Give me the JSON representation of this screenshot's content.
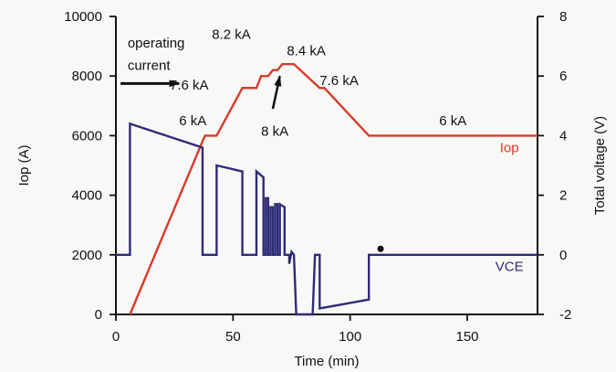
{
  "chart_data": {
    "type": "line",
    "title": "",
    "xlabel": "Time (min)",
    "ylabel": "Iop (A)",
    "y2label": "Total voltage (V)",
    "xlim": [
      0,
      180
    ],
    "ylim": [
      0,
      10000
    ],
    "y2lim": [
      -2,
      8
    ],
    "xticks": [
      0,
      50,
      100,
      150
    ],
    "yticks": [
      0,
      2000,
      4000,
      6000,
      8000,
      10000
    ],
    "y2ticks": [
      -2,
      0,
      2,
      4,
      6,
      8
    ],
    "xtick_labels": [
      "0",
      "50",
      "100",
      "150"
    ],
    "ytick_labels": [
      "0",
      "2000",
      "4000",
      "6000",
      "8000",
      "10000"
    ],
    "y2tick_labels": [
      "-2",
      "0",
      "2",
      "4",
      "6",
      "8"
    ],
    "grid": false,
    "colors": {
      "iop": "#d93a2b",
      "vce": "#2f2b78",
      "axis": "#111111"
    },
    "series": [
      {
        "name": "Iop",
        "axis": "left",
        "points": [
          [
            6,
            0
          ],
          [
            38,
            6000
          ],
          [
            43,
            6000
          ],
          [
            54,
            7600
          ],
          [
            60,
            7600
          ],
          [
            62,
            8000
          ],
          [
            65,
            8000
          ],
          [
            67,
            8200
          ],
          [
            69,
            8200
          ],
          [
            71,
            8400
          ],
          [
            76,
            8400
          ],
          [
            87,
            7600
          ],
          [
            89,
            7600
          ],
          [
            108,
            6000
          ],
          [
            180,
            6000
          ]
        ]
      },
      {
        "name": "VCE",
        "axis": "right",
        "points": [
          [
            0,
            0
          ],
          [
            6,
            0
          ],
          [
            6,
            4.4
          ],
          [
            37,
            3.6
          ],
          [
            37,
            0
          ],
          [
            43,
            0
          ],
          [
            43,
            3
          ],
          [
            54,
            2.8
          ],
          [
            54,
            0
          ],
          [
            60,
            0
          ],
          [
            60,
            2.8
          ],
          [
            63,
            2.6
          ],
          [
            63,
            0
          ],
          [
            64,
            0
          ],
          [
            64,
            1.9
          ],
          [
            65,
            1.9
          ],
          [
            65,
            0
          ],
          [
            66,
            0
          ],
          [
            66,
            1.6
          ],
          [
            67,
            1.6
          ],
          [
            67,
            0
          ],
          [
            68,
            0
          ],
          [
            68,
            1.7
          ],
          [
            69,
            1.7
          ],
          [
            69,
            0
          ],
          [
            70,
            0
          ],
          [
            70,
            1.7
          ],
          [
            72,
            1.6
          ],
          [
            72,
            0
          ],
          [
            74,
            0
          ],
          [
            74,
            -0.3
          ],
          [
            75,
            0.1
          ],
          [
            76,
            0
          ],
          [
            77,
            -2
          ],
          [
            84,
            -2
          ],
          [
            85,
            0
          ],
          [
            87,
            0
          ],
          [
            87,
            -1.8
          ],
          [
            108,
            -1.5
          ],
          [
            108,
            0
          ],
          [
            180,
            0
          ]
        ]
      }
    ],
    "series_labels": {
      "iop": "Iop",
      "vce": "VCE"
    },
    "annotations": [
      {
        "text": "operating",
        "x": 5,
        "y": 8950
      },
      {
        "text": "current",
        "x": 5,
        "y": 8200
      },
      {
        "text": "7.6 kA",
        "x": 23,
        "y": 7550
      },
      {
        "text": "6 kA",
        "x": 27,
        "y": 6350
      },
      {
        "text": "8.2 kA",
        "x": 41,
        "y": 9250
      },
      {
        "text": "8.4 kA",
        "x": 73,
        "y": 8700
      },
      {
        "text": "8 kA",
        "x": 62,
        "y": 6000
      },
      {
        "text": "7.6 kA",
        "x": 87,
        "y": 7700
      },
      {
        "text": "6 kA",
        "x": 138,
        "y": 6350
      }
    ],
    "markers": [
      {
        "name": "operating-current-arrow",
        "from": [
          2,
          7750
        ],
        "to": [
          27,
          7750
        ]
      },
      {
        "name": "8ka-pointer",
        "from": [
          67,
          6900
        ],
        "to": [
          70,
          8000
        ]
      },
      {
        "name": "dot",
        "x": 113,
        "y": 2200
      }
    ]
  }
}
